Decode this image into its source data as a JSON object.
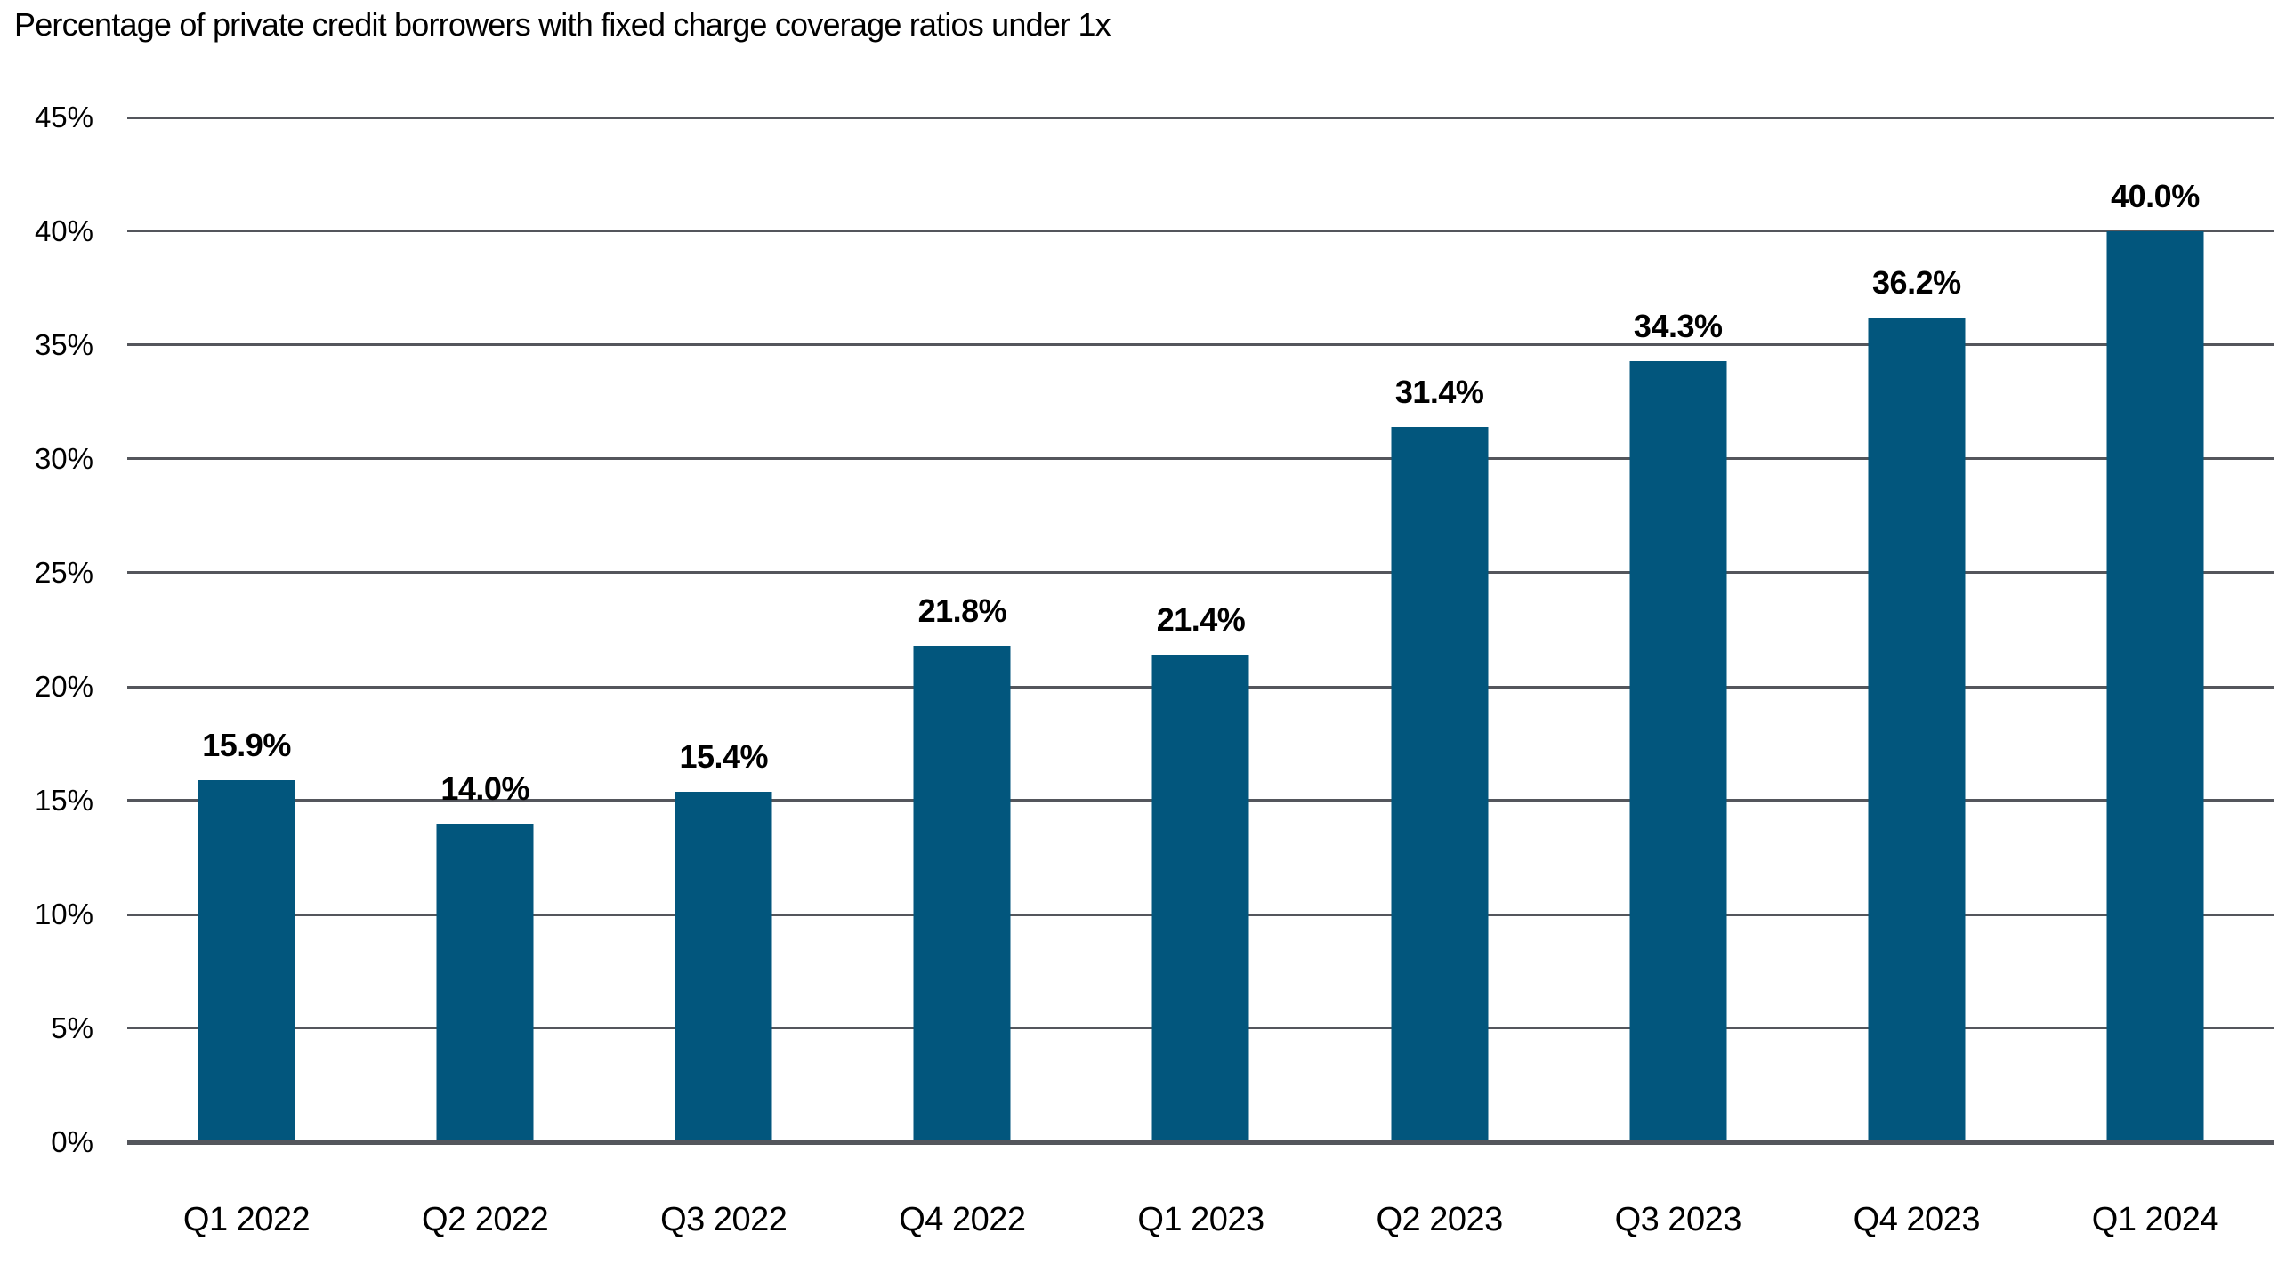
{
  "chart_data": {
    "type": "bar",
    "title": "Percentage of private credit borrowers with fixed charge coverage ratios under 1x",
    "categories": [
      "Q1 2022",
      "Q2 2022",
      "Q3 2022",
      "Q4 2022",
      "Q1 2023",
      "Q2 2023",
      "Q3 2023",
      "Q4 2023",
      "Q1 2024"
    ],
    "values": [
      15.9,
      14.0,
      15.4,
      21.8,
      21.4,
      31.4,
      34.3,
      36.2,
      40.0
    ],
    "value_labels": [
      "15.9%",
      "14.0%",
      "15.4%",
      "21.8%",
      "21.4%",
      "31.4%",
      "34.3%",
      "36.2%",
      "40.0%"
    ],
    "xlabel": "",
    "ylabel": "",
    "ylim": [
      0,
      45
    ],
    "yticks": [
      {
        "value": 45,
        "label": "45%"
      },
      {
        "value": 40,
        "label": "40%"
      },
      {
        "value": 35,
        "label": "35%"
      },
      {
        "value": 30,
        "label": "30%"
      },
      {
        "value": 25,
        "label": "25%"
      },
      {
        "value": 20,
        "label": "20%"
      },
      {
        "value": 15,
        "label": "15%"
      },
      {
        "value": 10,
        "label": "10%"
      },
      {
        "value": 5,
        "label": "5%"
      },
      {
        "value": 0,
        "label": "0%"
      }
    ],
    "grid": true,
    "legend": false,
    "colors": {
      "bar": "#02567d",
      "gridline": "#54565c",
      "text": "#000000"
    }
  }
}
